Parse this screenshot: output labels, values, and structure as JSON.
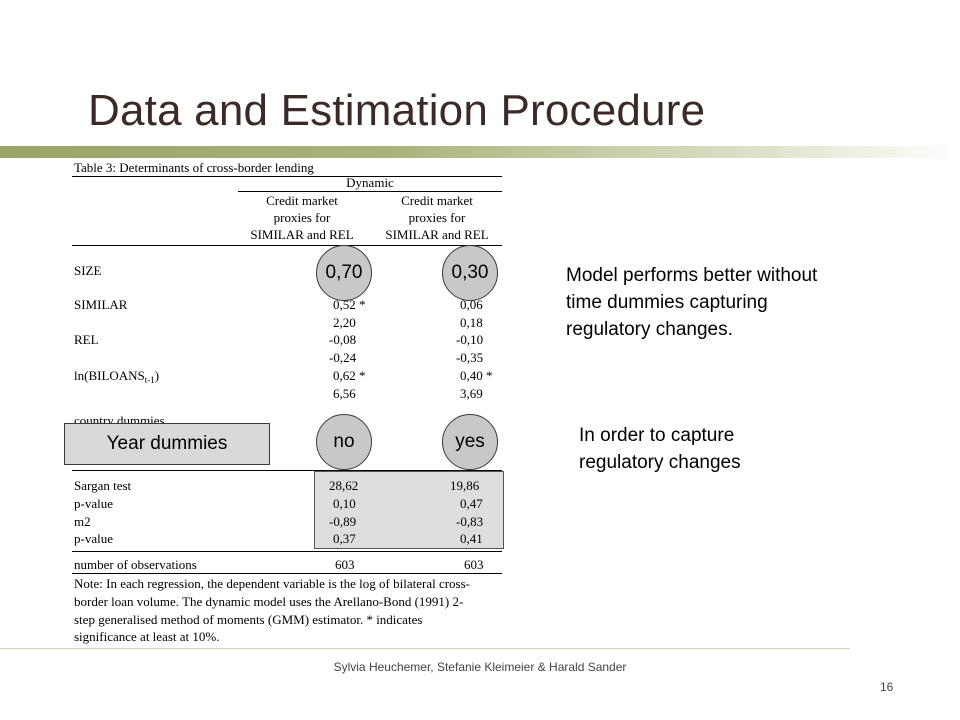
{
  "slide": {
    "title": "Data and Estimation Procedure",
    "footer": "Sylvia Heuchemer,  Stefanie Kleimeier & Harald Sander",
    "page_number": "16"
  },
  "table": {
    "caption": "Table 3: Determinants of cross-border lending",
    "group_header": "Dynamic",
    "col1_header": [
      "Credit market",
      "proxies for",
      "SIMILAR and REL"
    ],
    "col2_header": [
      "Credit market",
      "proxies for",
      "SIMILAR and REL"
    ],
    "rows": [
      {
        "label": "SIZE",
        "v1": "",
        "v2": ""
      },
      {
        "label": "SIMILAR",
        "v1": "0,52 *",
        "v2": "0,06"
      },
      {
        "label": "",
        "v1": "2,20",
        "v2": "0,18"
      },
      {
        "label": "REL",
        "v1": "-0,08",
        "v2": "-0,10"
      },
      {
        "label": "",
        "v1": "-0,24",
        "v2": "-0,35"
      },
      {
        "label_main": "ln(BILOANS",
        "label_sub": "t-1",
        "label_close": ")",
        "v1": "0,62 *",
        "v2": "0,40 *"
      },
      {
        "label": "",
        "v1": "6,56",
        "v2": "3,69"
      }
    ],
    "partial_row": "country dummies",
    "stats": [
      {
        "label": "Sargan test",
        "v1": "28,62",
        "v2": "19,86"
      },
      {
        "label": "p-value",
        "v1": "0,10",
        "v2": "0,47"
      },
      {
        "label": "m2",
        "v1": "-0,89",
        "v2": "-0,83"
      },
      {
        "label": "p-value",
        "v1": "0,37",
        "v2": "0,41"
      }
    ],
    "observations": {
      "label": "number of observations",
      "v1": "603",
      "v2": "603"
    },
    "note": [
      "Note: In each regression, the dependent variable is the log of bilateral cross-",
      "border loan volume. The dynamic model uses the Arellano-Bond (1991) 2-",
      "step generalised method of moments (GMM) estimator. * indicates",
      "significance at least at 10%."
    ]
  },
  "overlays": {
    "bubble_col1": "0,70",
    "bubble_col2": "0,30",
    "year_dummies_label": "Year dummies",
    "year_col1": "no",
    "year_col2": "yes"
  },
  "side_text": {
    "block1": [
      "Model performs better without",
      "time dummies capturing",
      "regulatory changes."
    ],
    "block2": [
      "In order to capture",
      "regulatory changes"
    ]
  }
}
